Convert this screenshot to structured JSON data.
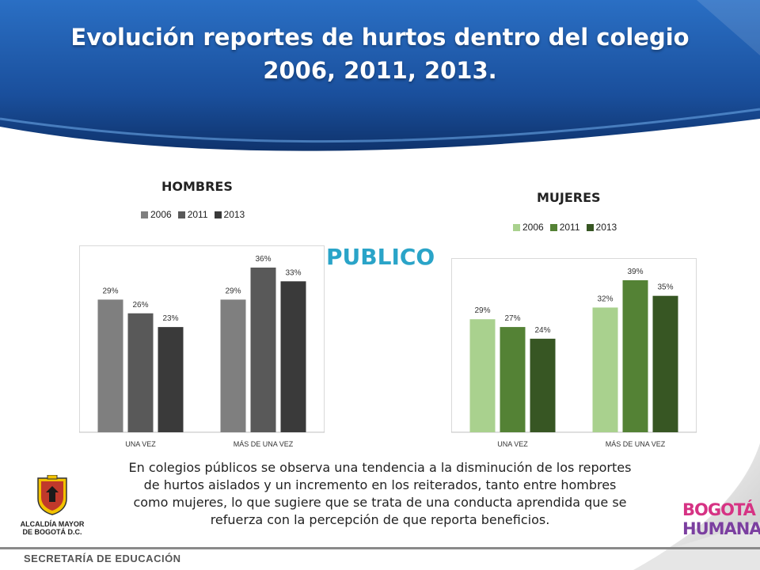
{
  "title": "Evolución reportes de hurtos dentro del colegio  2006, 2011, 2013.",
  "center_label": "PUBLICO",
  "caption": "En colegios públicos se observa una tendencia a la disminución de los reportes de hurtos aislados y un incremento en  los reiterados, tanto entre hombres como mujeres, lo que sugiere que se trata de una conducta aprendida que se refuerza con la percepción de que reporta beneficios.",
  "footer": "SECRETARÍA DE EDUCACIÓN",
  "logo_left_text_1": "ALCALDÍA MAYOR",
  "logo_left_text_2": "DE BOGOTÁ D.C.",
  "logo_right_line1": "BOGOTÁ",
  "logo_right_line2": "HUMANA",
  "colors": {
    "header_blue": "#1a4f9c",
    "publico": "#2aa4c8"
  },
  "chart_data": [
    {
      "type": "bar",
      "title": "HOMBRES",
      "categories": [
        "UNA VEZ",
        "MÁS DE UNA VEZ"
      ],
      "series": [
        {
          "name": "2006",
          "values": [
            29,
            29
          ],
          "labels": [
            "29%",
            "29%"
          ],
          "color": "#7f7f7f"
        },
        {
          "name": "2011",
          "values": [
            26,
            36
          ],
          "labels": [
            "26%",
            "36%"
          ],
          "color": "#595959"
        },
        {
          "name": "2013",
          "values": [
            23,
            33
          ],
          "labels": [
            "23%",
            "33%"
          ],
          "color": "#3a3a3a"
        }
      ],
      "legend": "top",
      "grid": false
    },
    {
      "type": "bar",
      "title": "MUJERES",
      "categories": [
        "UNA VEZ",
        "MÁS DE UNA VEZ"
      ],
      "series": [
        {
          "name": "2006",
          "values": [
            29,
            32
          ],
          "labels": [
            "29%",
            "32%"
          ],
          "color": "#a9d18e"
        },
        {
          "name": "2011",
          "values": [
            27,
            39
          ],
          "labels": [
            "27%",
            "39%"
          ],
          "color": "#548235"
        },
        {
          "name": "2013",
          "values": [
            24,
            35
          ],
          "labels": [
            "24%",
            "35%"
          ],
          "color": "#375623"
        }
      ],
      "legend": "top",
      "grid": false
    }
  ]
}
